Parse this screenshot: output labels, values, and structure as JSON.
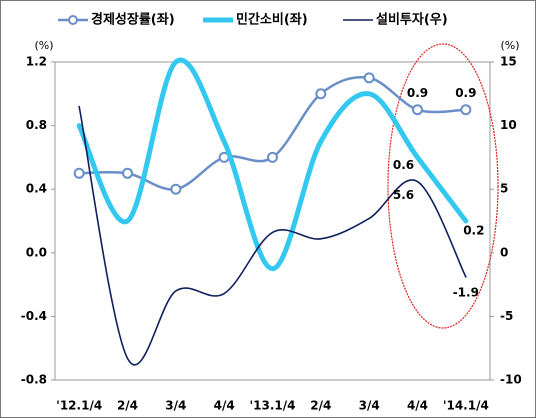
{
  "chart_data": {
    "type": "line",
    "categories": [
      "'12.1/4",
      "2/4",
      "3/4",
      "4/4",
      "'13.1/4",
      "2/4",
      "3/4",
      "4/4",
      "'14.1/4"
    ],
    "series": [
      {
        "name": "경제성장률(좌)",
        "color": "#6a8ec8",
        "values": [
          0.5,
          0.5,
          0.4,
          0.6,
          0.6,
          1.0,
          1.1,
          0.9,
          0.9
        ],
        "value_labels": [
          null,
          null,
          null,
          null,
          null,
          null,
          null,
          "0.9",
          "0.9"
        ]
      },
      {
        "name": "민간소비(좌)",
        "color": "#33c8f0",
        "values": [
          0.8,
          0.2,
          1.2,
          0.7,
          -0.1,
          0.7,
          1.0,
          0.6,
          0.2
        ],
        "value_labels": [
          null,
          null,
          null,
          null,
          null,
          null,
          null,
          "0.6",
          "0.2"
        ]
      },
      {
        "name": "설비투자(우)",
        "color": "#0f1f5c",
        "axis": "y2",
        "values": [
          11.5,
          -8.3,
          -3.0,
          -3.2,
          1.6,
          1.1,
          2.7,
          5.6,
          -1.9
        ],
        "value_labels": [
          null,
          null,
          null,
          null,
          null,
          null,
          null,
          "5.6",
          "-1.9"
        ]
      }
    ],
    "y_label": "(%)",
    "y2_label": "(%)",
    "ylim": [
      -0.8,
      1.2
    ],
    "yticks": [
      -0.8,
      -0.4,
      {
        "value": 0,
        "label": "0.0"
      },
      0.4,
      0.8,
      1.2
    ],
    "y2lim": [
      -10,
      15
    ],
    "y2ticks": [
      -10,
      -5,
      0,
      5,
      10,
      15
    ],
    "legend": "top"
  }
}
